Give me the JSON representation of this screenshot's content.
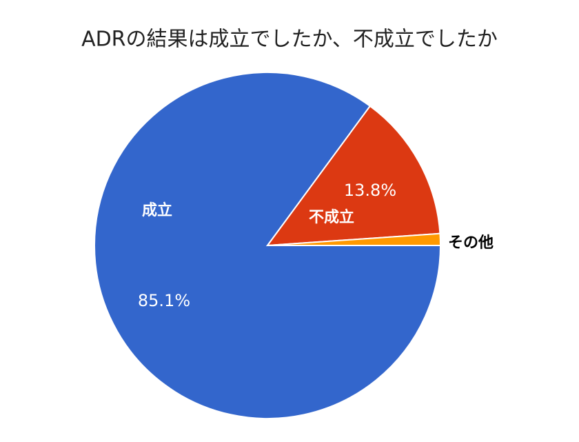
{
  "chart_data": {
    "type": "pie",
    "title": "ADRの結果は成立でしたか、不成立でしたか",
    "categories": [
      "成立",
      "不成立",
      "その他"
    ],
    "values": [
      85.1,
      13.8,
      1.1
    ],
    "value_labels": [
      "85.1%",
      "13.8%",
      null
    ],
    "colors": [
      "#3366cc",
      "#dc3912",
      "#ff9900"
    ]
  }
}
